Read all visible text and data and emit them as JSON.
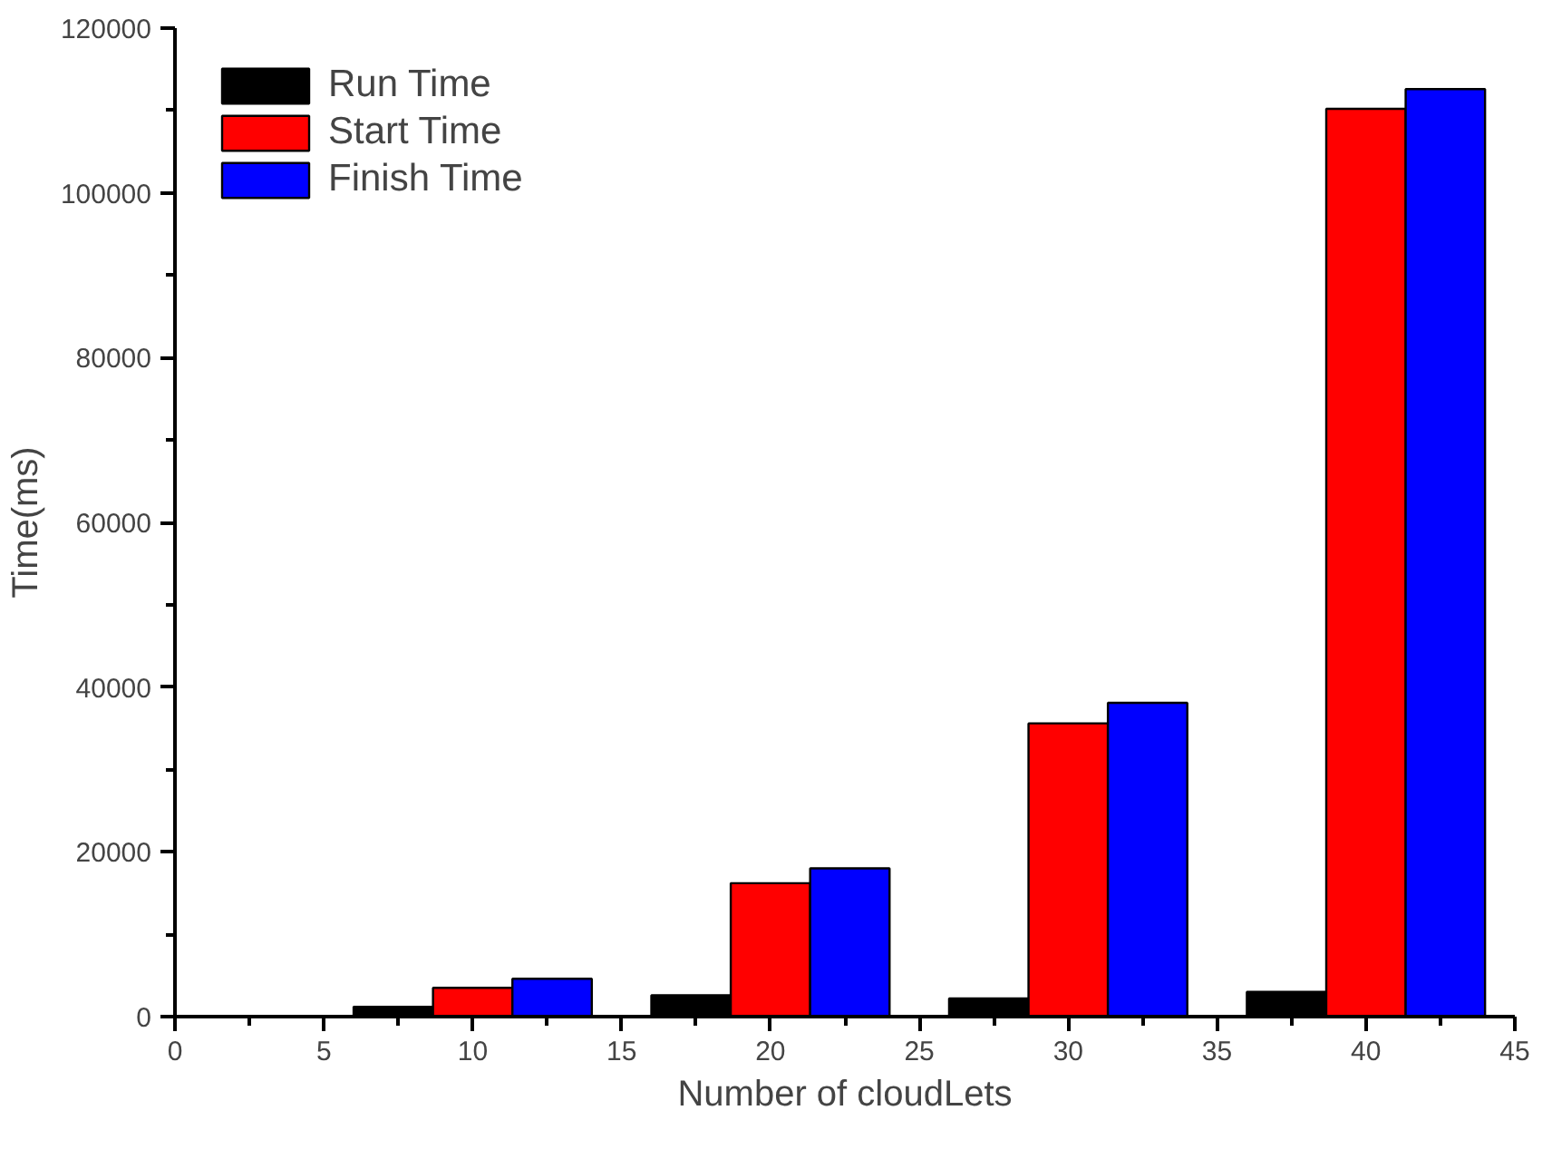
{
  "chart_data": {
    "type": "bar",
    "xlabel": "Number of cloudLets",
    "ylabel": "Time(ms)",
    "x": [
      10,
      20,
      30,
      40
    ],
    "series": [
      {
        "name": "Run Time",
        "color": "#000000",
        "values": [
          1200,
          2600,
          2200,
          3000
        ]
      },
      {
        "name": "Start Time",
        "color": "#ff0000",
        "values": [
          3500,
          16200,
          35600,
          110200
        ]
      },
      {
        "name": "Finish Time",
        "color": "#0000ff",
        "values": [
          4600,
          18000,
          38100,
          112600
        ]
      }
    ],
    "xlim": [
      0,
      45
    ],
    "xticks": [
      0,
      5,
      10,
      15,
      20,
      25,
      30,
      35,
      40,
      45
    ],
    "ylim": [
      0,
      120000
    ],
    "yticks": [
      0,
      20000,
      40000,
      60000,
      80000,
      100000,
      120000
    ],
    "grid": false,
    "legend": "top left"
  }
}
